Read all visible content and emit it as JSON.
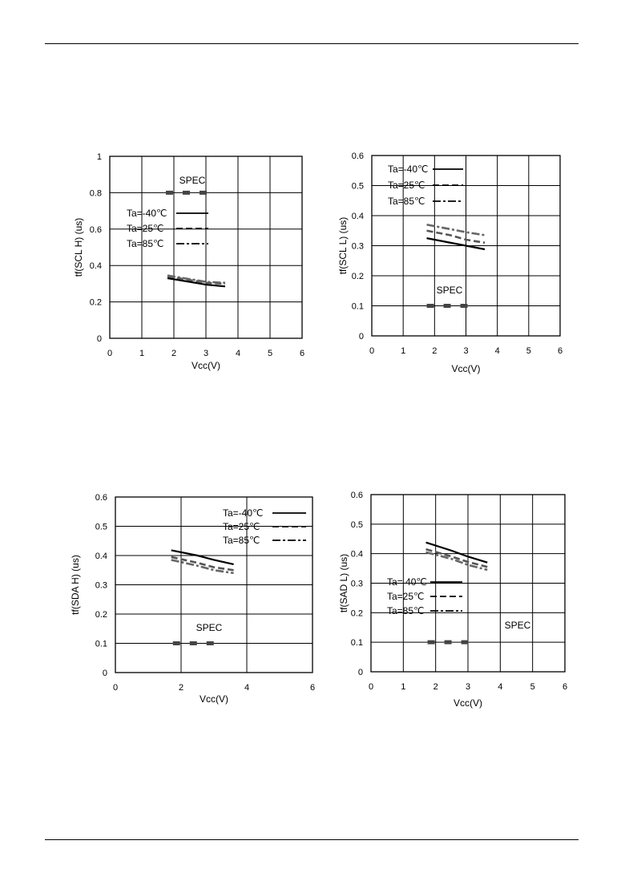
{
  "chart_data": [
    {
      "type": "line",
      "xlabel": "Vcc(V)",
      "ylabel": "tf(SCL H) (us)",
      "xlim": [
        0,
        6
      ],
      "ylim": [
        0,
        1
      ],
      "xticks": [
        "0",
        "1",
        "2",
        "3",
        "4",
        "5",
        "6"
      ],
      "yticks": [
        "0",
        "0.2",
        "0.4",
        "0.6",
        "0.8",
        "1"
      ],
      "grid": true,
      "legend_position": "center-right",
      "spec": {
        "label": "SPEC",
        "x": [
          1.75,
          3.15
        ],
        "y": 0.8
      },
      "series": [
        {
          "name": "Ta=-40℃",
          "style": "solid",
          "x": [
            1.8,
            2.5,
            3.0,
            3.6
          ],
          "y": [
            0.33,
            0.31,
            0.295,
            0.285
          ]
        },
        {
          "name": "Ta=25℃",
          "style": "dashed",
          "x": [
            1.8,
            2.5,
            3.0,
            3.6
          ],
          "y": [
            0.34,
            0.32,
            0.305,
            0.3
          ]
        },
        {
          "name": "Ta=85℃",
          "style": "dashdot",
          "x": [
            1.8,
            2.5,
            3.0,
            3.6
          ],
          "y": [
            0.345,
            0.325,
            0.31,
            0.305
          ]
        }
      ]
    },
    {
      "type": "line",
      "xlabel": "Vcc(V)",
      "ylabel": "tf(SCL L) (us)",
      "xlim": [
        0,
        6
      ],
      "ylim": [
        0,
        0.6
      ],
      "xticks": [
        "0",
        "1",
        "2",
        "3",
        "4",
        "5",
        "6"
      ],
      "yticks": [
        "0",
        "0.1",
        "0.2",
        "0.3",
        "0.4",
        "0.5",
        "0.6"
      ],
      "grid": true,
      "legend_position": "top-left",
      "spec": {
        "label": "SPEC",
        "x": [
          1.75,
          3.15
        ],
        "y": 0.1
      },
      "series": [
        {
          "name": "Ta=-40℃",
          "style": "solid",
          "x": [
            1.75,
            2.5,
            3.0,
            3.6
          ],
          "y": [
            0.325,
            0.31,
            0.3,
            0.288
          ]
        },
        {
          "name": "Ta=25℃",
          "style": "dashed",
          "x": [
            1.75,
            2.5,
            3.0,
            3.6
          ],
          "y": [
            0.35,
            0.335,
            0.32,
            0.31
          ]
        },
        {
          "name": "Ta=85℃",
          "style": "dashdot",
          "x": [
            1.75,
            2.5,
            3.0,
            3.6
          ],
          "y": [
            0.37,
            0.355,
            0.345,
            0.335
          ]
        }
      ]
    },
    {
      "type": "line",
      "xlabel": "Vcc(V)",
      "ylabel": "tf(SDA H) (us)",
      "xlim": [
        0,
        6
      ],
      "ylim": [
        0,
        0.6
      ],
      "xticks": [
        "0",
        "2",
        "4",
        "6"
      ],
      "yticks": [
        "0",
        "0.1",
        "0.2",
        "0.3",
        "0.4",
        "0.5",
        "0.6"
      ],
      "grid": true,
      "legend_position": "top-right",
      "spec": {
        "label": "SPEC",
        "x": [
          1.75,
          3.15
        ],
        "y": 0.1
      },
      "series": [
        {
          "name": "Ta=-40℃",
          "style": "solid",
          "x": [
            1.7,
            2.5,
            3.0,
            3.6
          ],
          "y": [
            0.418,
            0.4,
            0.385,
            0.37
          ]
        },
        {
          "name": "Ta=25℃",
          "style": "dashed",
          "x": [
            1.7,
            2.5,
            3.0,
            3.6
          ],
          "y": [
            0.395,
            0.375,
            0.36,
            0.35
          ]
        },
        {
          "name": "Ta=85℃",
          "style": "dashdot",
          "x": [
            1.7,
            2.5,
            3.0,
            3.6
          ],
          "y": [
            0.385,
            0.365,
            0.35,
            0.34
          ]
        }
      ]
    },
    {
      "type": "line",
      "xlabel": "Vcc(V)",
      "ylabel": "tf(SAD L) (us)",
      "xlim": [
        0,
        6
      ],
      "ylim": [
        0,
        0.6
      ],
      "xticks": [
        "0",
        "1",
        "2",
        "3",
        "4",
        "5",
        "6"
      ],
      "yticks": [
        "0",
        "0.1",
        "0.2",
        "0.3",
        "0.4",
        "0.5",
        "0.6"
      ],
      "grid": true,
      "legend_position": "bottom-left",
      "spec": {
        "label": "SPEC",
        "x": [
          1.75,
          3.15
        ],
        "y": 0.1
      },
      "series": [
        {
          "name": "Ta= 40℃",
          "style": "solid",
          "x": [
            1.7,
            2.5,
            3.0,
            3.6
          ],
          "y": [
            0.438,
            0.41,
            0.39,
            0.37
          ]
        },
        {
          "name": "Ta=25℃",
          "style": "dashed",
          "x": [
            1.7,
            2.5,
            3.0,
            3.6
          ],
          "y": [
            0.415,
            0.39,
            0.372,
            0.355
          ]
        },
        {
          "name": "Ta=85℃",
          "style": "dashdot",
          "x": [
            1.7,
            2.5,
            3.0,
            3.6
          ],
          "y": [
            0.405,
            0.382,
            0.362,
            0.345
          ]
        }
      ]
    }
  ]
}
